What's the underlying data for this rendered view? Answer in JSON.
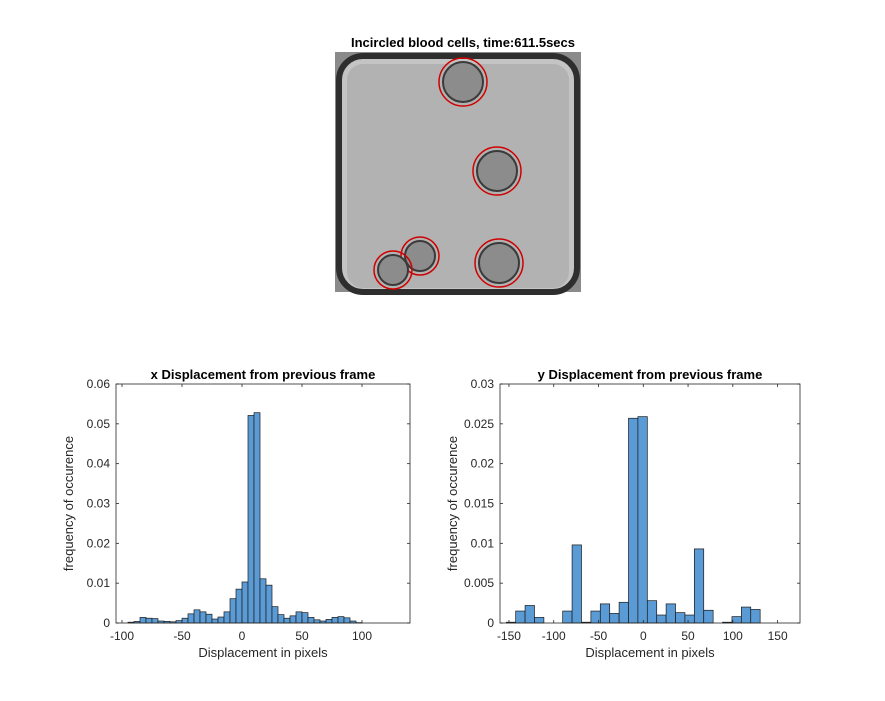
{
  "image_panel": {
    "title": "Incircled blood cells, time:611.5secs",
    "cells": [
      {
        "cx": 128,
        "cy": 30,
        "r": 24
      },
      {
        "cx": 162,
        "cy": 119,
        "r": 24
      },
      {
        "cx": 164,
        "cy": 211,
        "r": 24
      },
      {
        "cx": 85,
        "cy": 204,
        "r": 19
      },
      {
        "cx": 58,
        "cy": 218,
        "r": 19
      }
    ]
  },
  "colors": {
    "bar_fill": "#5b9bd5",
    "bar_edge": "#1a1a1a",
    "circle": "#d00000",
    "image_bg": "#a8a8a8",
    "image_border": "#404040"
  },
  "chart_data": [
    {
      "type": "bar",
      "title": "x Displacement from previous frame",
      "xlabel": "Displacement in pixels",
      "ylabel": "frequency of occurence",
      "xlim": [
        -105,
        140
      ],
      "ylim": [
        0,
        0.06
      ],
      "xticks": [
        -100,
        -50,
        0,
        50,
        100
      ],
      "yticks": [
        0,
        0.01,
        0.02,
        0.03,
        0.04,
        0.05,
        0.06
      ],
      "ytick_labels": [
        "0",
        "0.01",
        "0.02",
        "0.03",
        "0.04",
        "0.05",
        "0.06"
      ],
      "bin_width": 5,
      "bin_edges_start": -95,
      "values": [
        0.0002,
        0.0004,
        0.0014,
        0.0012,
        0.0011,
        0.0005,
        0.0004,
        0.0003,
        0.0006,
        0.0012,
        0.0023,
        0.0033,
        0.0028,
        0.0022,
        0.001,
        0.0015,
        0.0028,
        0.0061,
        0.0085,
        0.0103,
        0.0521,
        0.0528,
        0.0111,
        0.0095,
        0.0041,
        0.0021,
        0.0012,
        0.0018,
        0.0028,
        0.0026,
        0.0014,
        0.0008,
        0.0005,
        0.0009,
        0.0014,
        0.0016,
        0.0013,
        0.0005,
        0.0001
      ]
    },
    {
      "type": "bar",
      "title": "y Displacement from previous frame",
      "xlabel": "Displacement in pixels",
      "ylabel": "frequency of occurence",
      "xlim": [
        -160,
        175
      ],
      "ylim": [
        0,
        0.03
      ],
      "xticks": [
        -150,
        -100,
        -50,
        0,
        50,
        100,
        150
      ],
      "yticks": [
        0,
        0.005,
        0.01,
        0.015,
        0.02,
        0.025,
        0.03
      ],
      "ytick_labels": [
        "0",
        "0.005",
        "0.01",
        "0.015",
        "0.02",
        "0.025",
        "0.03"
      ],
      "bin_width": 10.5,
      "bin_edges_start": -153,
      "values": [
        0.0001,
        0.0015,
        0.0022,
        0.0007,
        0.0,
        0.0,
        0.0015,
        0.0098,
        0.0001,
        0.0015,
        0.0024,
        0.0012,
        0.0026,
        0.0257,
        0.0259,
        0.0028,
        0.001,
        0.0024,
        0.0013,
        0.001,
        0.0093,
        0.0016,
        0.0,
        0.0001,
        0.0008,
        0.002,
        0.0017,
        0.0
      ]
    }
  ]
}
